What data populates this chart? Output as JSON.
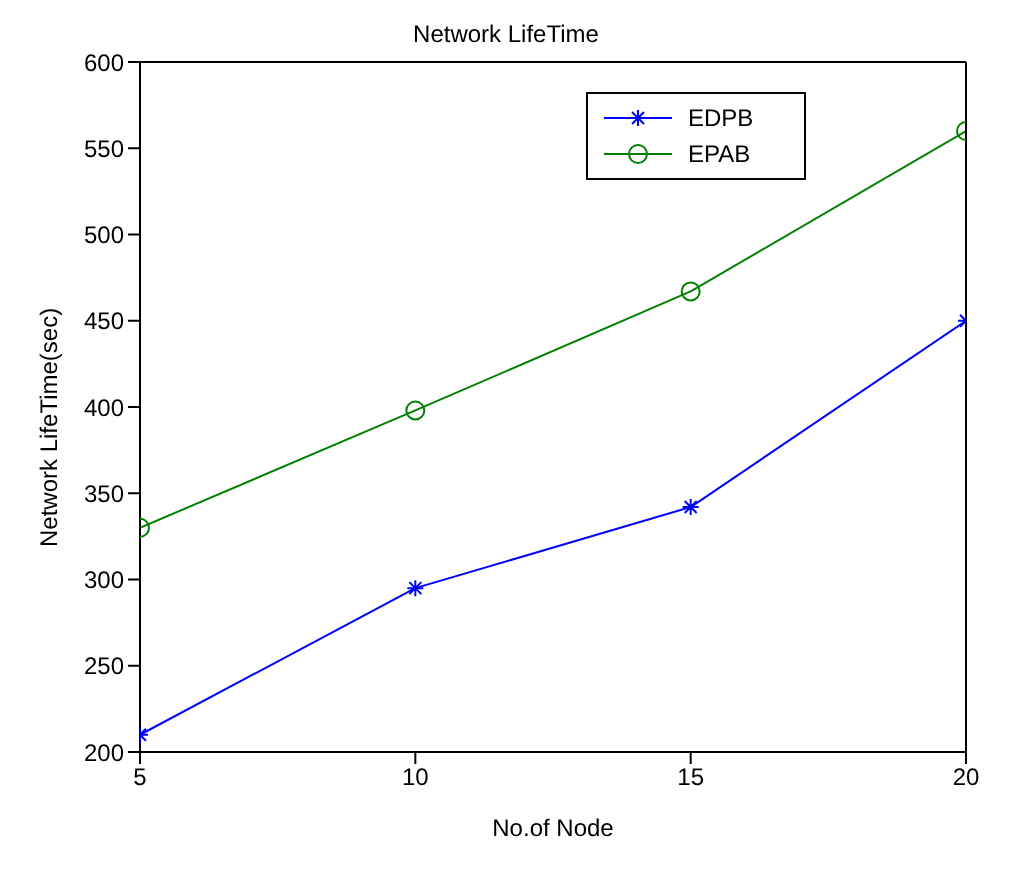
{
  "chart_data": {
    "type": "line",
    "title": "Network LifeTime",
    "xlabel": "No.of Node",
    "ylabel": "Network LifeTime(sec)",
    "x": [
      5,
      10,
      15,
      20
    ],
    "series": [
      {
        "name": "EDPB",
        "color": "#0000ff",
        "marker": "cross",
        "values": [
          210,
          295,
          342,
          450
        ]
      },
      {
        "name": "EPAB",
        "color": "#008000",
        "marker": "circle",
        "values": [
          330,
          398,
          467,
          560
        ]
      }
    ],
    "xlim": [
      5,
      20
    ],
    "xticks": [
      5,
      10,
      15,
      20
    ],
    "ylim": [
      200,
      600
    ],
    "yticks": [
      200,
      250,
      300,
      350,
      400,
      450,
      500,
      550,
      600
    ],
    "grid": false,
    "legend": "top right"
  }
}
